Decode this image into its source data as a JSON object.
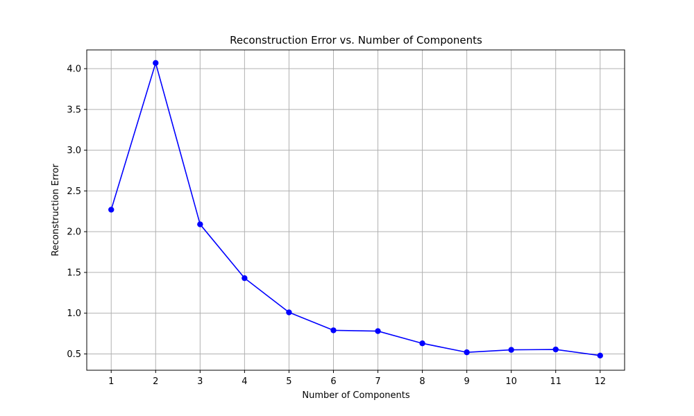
{
  "chart_data": {
    "type": "line",
    "title": "Reconstruction Error vs. Number of Components",
    "xlabel": "Number of Components",
    "ylabel": "Reconstruction Error",
    "x": [
      1,
      2,
      3,
      4,
      5,
      6,
      7,
      8,
      9,
      10,
      11,
      12
    ],
    "y": [
      2.27,
      4.07,
      2.09,
      1.43,
      1.01,
      0.79,
      0.78,
      0.63,
      0.52,
      0.55,
      0.555,
      0.48
    ],
    "xticks": [
      1,
      2,
      3,
      4,
      5,
      6,
      7,
      8,
      9,
      10,
      11,
      12
    ],
    "xtick_labels": [
      "1",
      "2",
      "3",
      "4",
      "5",
      "6",
      "7",
      "8",
      "9",
      "10",
      "11",
      "12"
    ],
    "yticks": [
      0.5,
      1.0,
      1.5,
      2.0,
      2.5,
      3.0,
      3.5,
      4.0
    ],
    "ytick_labels": [
      "0.5",
      "1.0",
      "1.5",
      "2.0",
      "2.5",
      "3.0",
      "3.5",
      "4.0"
    ],
    "xlim": [
      0.45,
      12.55
    ],
    "ylim": [
      0.3,
      4.23
    ],
    "grid": true,
    "line_color": "#0000ff",
    "marker": "circle",
    "grid_color": "#b0b0b0"
  }
}
